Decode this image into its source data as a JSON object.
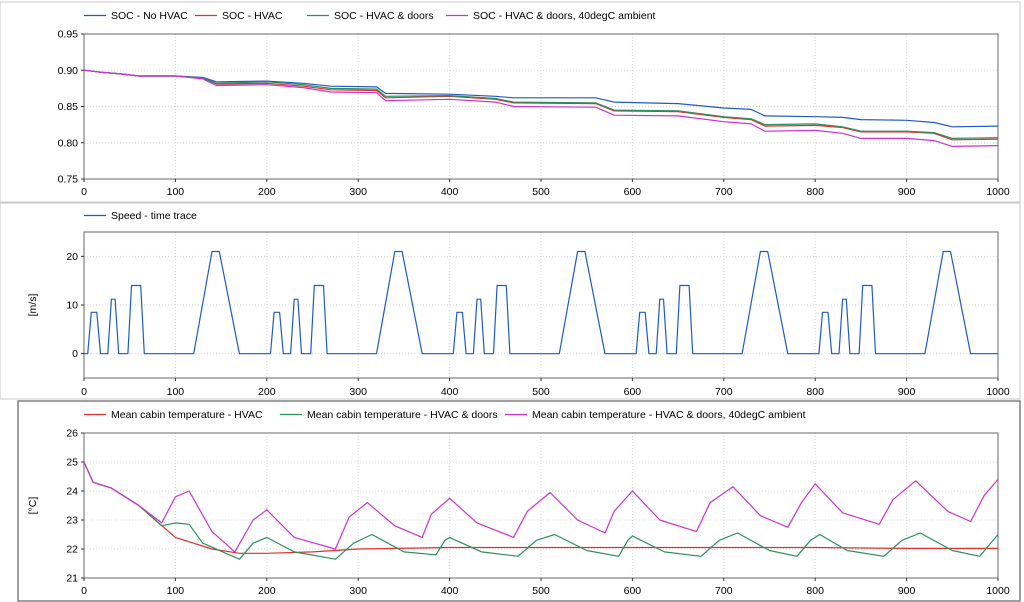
{
  "chart_data": [
    {
      "type": "line",
      "legend_placement": "top-left",
      "xlim": [
        0,
        1000
      ],
      "ylim": [
        0.75,
        0.95
      ],
      "x_ticks": [
        "0",
        "100",
        "200",
        "300",
        "400",
        "500",
        "600",
        "700",
        "800",
        "900",
        "1000"
      ],
      "y_ticks": [
        "0.75",
        "0.80",
        "0.85",
        "0.90",
        "0.95"
      ],
      "ylabel": "",
      "grid": true,
      "series": [
        {
          "name": "SOC - No HVAC",
          "color": "#1f5bc4",
          "x": [
            0,
            20,
            40,
            60,
            100,
            130,
            145,
            200,
            240,
            270,
            320,
            330,
            400,
            450,
            470,
            560,
            580,
            650,
            700,
            730,
            745,
            800,
            830,
            850,
            900,
            930,
            950,
            1000
          ],
          "y": [
            0.9,
            0.897,
            0.895,
            0.892,
            0.892,
            0.89,
            0.884,
            0.885,
            0.882,
            0.878,
            0.877,
            0.868,
            0.867,
            0.864,
            0.862,
            0.862,
            0.856,
            0.854,
            0.848,
            0.846,
            0.837,
            0.836,
            0.835,
            0.832,
            0.831,
            0.828,
            0.822,
            0.823
          ]
        },
        {
          "name": "SOC - HVAC",
          "color": "#e03030",
          "x": [
            0,
            20,
            40,
            60,
            100,
            130,
            145,
            200,
            240,
            270,
            320,
            330,
            400,
            450,
            470,
            560,
            580,
            650,
            700,
            730,
            745,
            800,
            830,
            850,
            900,
            930,
            950,
            1000
          ],
          "y": [
            0.9,
            0.897,
            0.895,
            0.892,
            0.892,
            0.889,
            0.881,
            0.882,
            0.878,
            0.873,
            0.872,
            0.862,
            0.864,
            0.86,
            0.855,
            0.854,
            0.844,
            0.843,
            0.835,
            0.832,
            0.823,
            0.824,
            0.821,
            0.815,
            0.815,
            0.813,
            0.804,
            0.805
          ]
        },
        {
          "name": "SOC - HVAC & doors",
          "color": "#2a9060",
          "x": [
            0,
            20,
            40,
            60,
            100,
            130,
            145,
            200,
            240,
            270,
            320,
            330,
            400,
            450,
            470,
            560,
            580,
            650,
            700,
            730,
            745,
            800,
            830,
            850,
            900,
            930,
            950,
            1000
          ],
          "y": [
            0.9,
            0.897,
            0.895,
            0.892,
            0.892,
            0.889,
            0.882,
            0.884,
            0.88,
            0.875,
            0.874,
            0.864,
            0.865,
            0.861,
            0.856,
            0.855,
            0.845,
            0.844,
            0.836,
            0.833,
            0.825,
            0.826,
            0.822,
            0.816,
            0.816,
            0.814,
            0.806,
            0.807
          ]
        },
        {
          "name": "SOC - HVAC & doors, 40degC ambient",
          "color": "#cc33cc",
          "x": [
            0,
            20,
            40,
            60,
            100,
            130,
            145,
            200,
            240,
            270,
            320,
            330,
            400,
            450,
            470,
            560,
            580,
            650,
            700,
            730,
            745,
            800,
            830,
            850,
            900,
            930,
            950,
            1000
          ],
          "y": [
            0.9,
            0.897,
            0.895,
            0.892,
            0.892,
            0.888,
            0.879,
            0.88,
            0.876,
            0.87,
            0.869,
            0.858,
            0.86,
            0.856,
            0.85,
            0.849,
            0.838,
            0.837,
            0.829,
            0.826,
            0.816,
            0.817,
            0.813,
            0.806,
            0.806,
            0.803,
            0.795,
            0.796
          ]
        }
      ]
    },
    {
      "type": "line",
      "legend_placement": "top-left",
      "xlim": [
        0,
        1000
      ],
      "ylim": [
        -5,
        25
      ],
      "x_ticks": [
        "0",
        "100",
        "200",
        "300",
        "400",
        "500",
        "600",
        "700",
        "800",
        "900",
        "1000"
      ],
      "y_ticks": [
        "0",
        "10",
        "20"
      ],
      "ylabel": "[m/s]",
      "grid": true,
      "series": [
        {
          "name": "Speed - time trace",
          "color": "#1f5bc4",
          "period": 200,
          "x": [
            0,
            4,
            8,
            14,
            18,
            22,
            26,
            30,
            34,
            38,
            44,
            48,
            52,
            56,
            62,
            66,
            80,
            110,
            120,
            140,
            148,
            170,
            200
          ],
          "y": [
            0,
            0,
            8.5,
            8.5,
            0,
            0,
            0,
            11.2,
            11.2,
            0,
            0,
            0,
            14,
            14,
            14,
            0,
            0,
            0,
            0,
            21,
            21,
            0,
            0
          ]
        }
      ]
    },
    {
      "type": "line",
      "legend_placement": "top-left",
      "xlim": [
        0,
        1000
      ],
      "ylim": [
        21,
        26
      ],
      "x_ticks": [
        "0",
        "100",
        "200",
        "300",
        "400",
        "500",
        "600",
        "700",
        "800",
        "900",
        "1000"
      ],
      "y_ticks": [
        "21",
        "22",
        "23",
        "24",
        "25",
        "26"
      ],
      "ylabel": "[°C]",
      "grid": true,
      "series": [
        {
          "name": "Mean cabin temperature - HVAC",
          "color": "#e03030",
          "x": [
            0,
            10,
            30,
            60,
            100,
            140,
            170,
            200,
            250,
            300,
            400,
            500,
            600,
            700,
            800,
            900,
            1000
          ],
          "y": [
            25.0,
            24.3,
            24.1,
            23.5,
            22.4,
            22.0,
            21.85,
            21.85,
            21.9,
            22.0,
            22.05,
            22.05,
            22.05,
            22.05,
            22.05,
            22.02,
            22.02
          ]
        },
        {
          "name": "Mean cabin temperature - HVAC & doors",
          "color": "#2a9060",
          "x": [
            0,
            10,
            30,
            60,
            85,
            100,
            115,
            130,
            170,
            185,
            200,
            230,
            275,
            295,
            315,
            350,
            385,
            395,
            400,
            435,
            475,
            495,
            515,
            550,
            585,
            595,
            600,
            635,
            675,
            695,
            715,
            750,
            780,
            795,
            805,
            835,
            875,
            895,
            915,
            950,
            980,
            1000
          ],
          "y": [
            25.0,
            24.3,
            24.1,
            23.5,
            22.8,
            22.9,
            22.85,
            22.2,
            21.65,
            22.2,
            22.4,
            21.9,
            21.65,
            22.2,
            22.5,
            21.9,
            21.8,
            22.3,
            22.4,
            21.9,
            21.75,
            22.3,
            22.5,
            21.95,
            21.75,
            22.3,
            22.45,
            21.9,
            21.75,
            22.3,
            22.55,
            21.95,
            21.75,
            22.3,
            22.5,
            21.95,
            21.75,
            22.3,
            22.55,
            21.95,
            21.75,
            22.5
          ]
        },
        {
          "name": "Mean cabin temperature - HVAC & doors, 40degC ambient",
          "color": "#cc33cc",
          "x": [
            0,
            10,
            30,
            60,
            85,
            100,
            115,
            140,
            165,
            185,
            200,
            230,
            275,
            290,
            310,
            340,
            370,
            380,
            400,
            430,
            470,
            485,
            510,
            540,
            570,
            580,
            600,
            630,
            670,
            685,
            710,
            740,
            770,
            785,
            800,
            830,
            870,
            885,
            910,
            945,
            970,
            985,
            1000
          ],
          "y": [
            25.0,
            24.3,
            24.1,
            23.5,
            22.9,
            23.8,
            24.0,
            22.6,
            21.9,
            23.0,
            23.35,
            22.4,
            22.0,
            23.1,
            23.6,
            22.8,
            22.4,
            23.2,
            23.75,
            22.9,
            22.4,
            23.3,
            23.95,
            23.0,
            22.55,
            23.3,
            24.0,
            23.0,
            22.6,
            23.6,
            24.15,
            23.15,
            22.75,
            23.6,
            24.25,
            23.25,
            22.85,
            23.7,
            24.35,
            23.3,
            22.95,
            23.85,
            24.4
          ]
        }
      ]
    }
  ]
}
